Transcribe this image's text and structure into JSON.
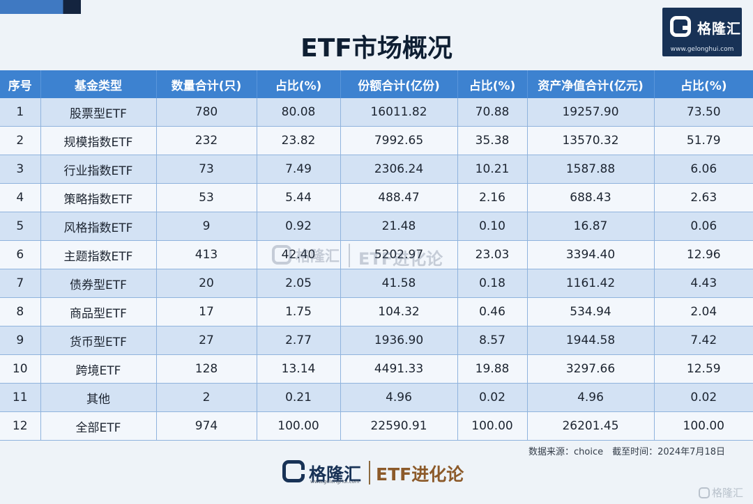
{
  "title": "ETF市场概况",
  "brand": {
    "name": "格隆汇",
    "url": "www.gelonghui.com"
  },
  "watermark": {
    "brand": "格隆汇",
    "url": "www.gelonghui.com",
    "sub": "ETF进化论"
  },
  "table": {
    "headers": [
      "序号",
      "基金类型",
      "数量合计(只)",
      "占比(%)",
      "份额合计(亿份)",
      "占比(%)",
      "资产净值合计(亿元)",
      "占比(%)"
    ],
    "rows": [
      [
        "1",
        "股票型ETF",
        "780",
        "80.08",
        "16011.82",
        "70.88",
        "19257.90",
        "73.50"
      ],
      [
        "2",
        "规模指数ETF",
        "232",
        "23.82",
        "7992.65",
        "35.38",
        "13570.32",
        "51.79"
      ],
      [
        "3",
        "行业指数ETF",
        "73",
        "7.49",
        "2306.24",
        "10.21",
        "1587.88",
        "6.06"
      ],
      [
        "4",
        "策略指数ETF",
        "53",
        "5.44",
        "488.47",
        "2.16",
        "688.43",
        "2.63"
      ],
      [
        "5",
        "风格指数ETF",
        "9",
        "0.92",
        "21.48",
        "0.10",
        "16.87",
        "0.06"
      ],
      [
        "6",
        "主题指数ETF",
        "413",
        "42.40",
        "5202.97",
        "23.03",
        "3394.40",
        "12.96"
      ],
      [
        "7",
        "债券型ETF",
        "20",
        "2.05",
        "41.58",
        "0.18",
        "1161.42",
        "4.43"
      ],
      [
        "8",
        "商品型ETF",
        "17",
        "1.75",
        "104.32",
        "0.46",
        "534.94",
        "2.04"
      ],
      [
        "9",
        "货币型ETF",
        "27",
        "2.77",
        "1936.90",
        "8.57",
        "1944.58",
        "7.42"
      ],
      [
        "10",
        "跨境ETF",
        "128",
        "13.14",
        "4491.33",
        "19.88",
        "3297.66",
        "12.59"
      ],
      [
        "11",
        "其他",
        "2",
        "0.21",
        "4.96",
        "0.02",
        "4.96",
        "0.02"
      ],
      [
        "12",
        "全部ETF",
        "974",
        "100.00",
        "22590.91",
        "100.00",
        "26201.45",
        "100.00"
      ]
    ]
  },
  "source_note": "数据来源：choice　截至时间：2024年7月18日",
  "footer": {
    "brand": "格隆汇",
    "url": "www.gelonghui.com",
    "sub": "ETF进化论"
  },
  "corner_watermark": "格隆汇",
  "colors": {
    "header": "#3d82d0",
    "row_odd": "#d3e2f4",
    "row_even": "#f3f7fc",
    "title": "#0f1f33",
    "accent_brown": "#8c5a2a",
    "navy": "#183256"
  }
}
